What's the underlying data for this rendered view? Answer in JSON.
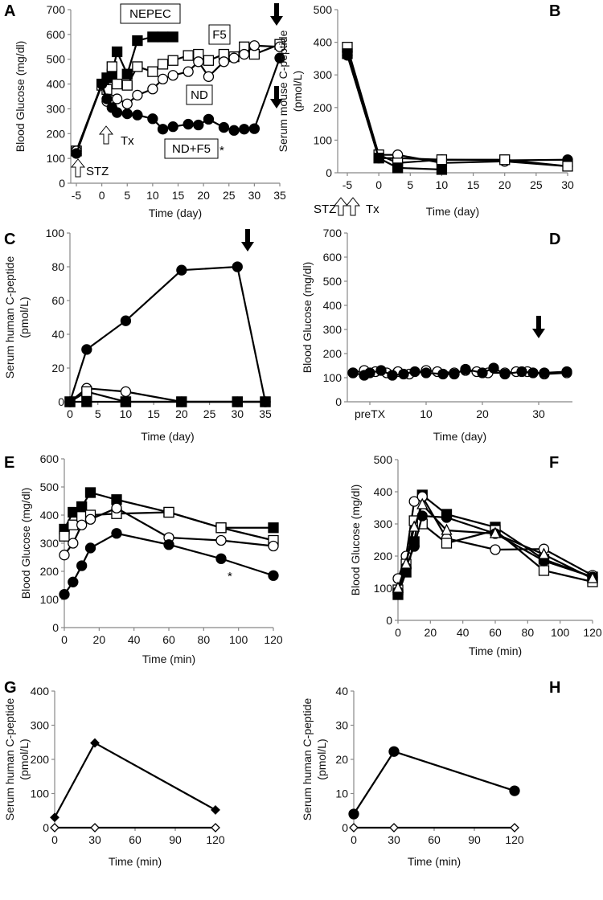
{
  "chart_data": [
    {
      "panel": "A",
      "type": "line",
      "ylabel": "Blood Glucose (mg/dl)",
      "xlabel": "Time (day)",
      "ylim": [
        0,
        700
      ],
      "xlim": [
        -5,
        35
      ],
      "yticks": [
        0,
        100,
        200,
        300,
        400,
        500,
        600,
        700
      ],
      "xticks": [
        -5,
        0,
        5,
        10,
        15,
        20,
        25,
        30,
        35
      ],
      "annotations": [
        "NEPEC",
        "F5",
        "ND",
        "ND+F5",
        "*",
        "Tx",
        "STZ"
      ],
      "series": [
        {
          "name": "NEPEC",
          "marker": "filled-square",
          "x": [
            -5,
            0,
            1,
            2,
            3,
            5,
            7,
            10,
            12,
            14
          ],
          "y": [
            130,
            400,
            425,
            440,
            530,
            440,
            575,
            590,
            590,
            590
          ]
        },
        {
          "name": "F5",
          "marker": "open-square",
          "x": [
            -5,
            0,
            1,
            2,
            3,
            5,
            7,
            10,
            12,
            14,
            17,
            19,
            21,
            24,
            26,
            28,
            30,
            35
          ],
          "y": [
            130,
            395,
            378,
            470,
            400,
            395,
            470,
            450,
            480,
            495,
            515,
            520,
            495,
            520,
            510,
            550,
            520,
            560
          ]
        },
        {
          "name": "ND",
          "marker": "open-circle",
          "x": [
            -5,
            0,
            1,
            2,
            3,
            5,
            7,
            10,
            12,
            14,
            17,
            19,
            21,
            24,
            26,
            28,
            30,
            35
          ],
          "y": [
            130,
            400,
            330,
            335,
            340,
            320,
            355,
            380,
            420,
            435,
            450,
            490,
            430,
            490,
            505,
            520,
            555,
            550
          ]
        },
        {
          "name": "ND+F5",
          "marker": "filled-circle",
          "x": [
            -5,
            0,
            1,
            2,
            3,
            5,
            7,
            10,
            12,
            14,
            17,
            19,
            21,
            24,
            26,
            28,
            30,
            35
          ],
          "y": [
            120,
            400,
            340,
            305,
            285,
            280,
            275,
            260,
            218,
            228,
            238,
            235,
            258,
            225,
            213,
            218,
            220,
            505
          ]
        }
      ]
    },
    {
      "panel": "B",
      "type": "line",
      "ylabel": "Serum mouse C-peptide (pmol/L)",
      "xlabel": "Time (day)",
      "ylim": [
        0,
        500
      ],
      "xlim": [
        -5,
        30
      ],
      "yticks": [
        0,
        100,
        200,
        300,
        400,
        500
      ],
      "xticks": [
        -5,
        0,
        5,
        10,
        15,
        20,
        25,
        30
      ],
      "annotations": [
        "STZ",
        "Tx"
      ],
      "series": [
        {
          "name": "ND+F5",
          "marker": "filled-circle",
          "x": [
            -5,
            0,
            3,
            10,
            20,
            30
          ],
          "y": [
            360,
            45,
            45,
            40,
            38,
            40
          ]
        },
        {
          "name": "ND",
          "marker": "open-circle",
          "x": [
            -5,
            0,
            3,
            10,
            20,
            30
          ],
          "y": [
            370,
            55,
            55,
            30,
            35,
            20
          ]
        },
        {
          "name": "F5",
          "marker": "open-square",
          "x": [
            -5,
            0,
            3,
            10,
            20,
            30
          ],
          "y": [
            385,
            55,
            30,
            40,
            40,
            20
          ]
        },
        {
          "name": "NEPEC",
          "marker": "filled-square",
          "x": [
            -5,
            0,
            3,
            10
          ],
          "y": [
            365,
            45,
            15,
            10
          ]
        }
      ]
    },
    {
      "panel": "C",
      "type": "line",
      "ylabel": "Serum human C-peptide (pmol/L)",
      "xlabel": "Time (day)",
      "ylim": [
        0,
        100
      ],
      "xlim": [
        0,
        35
      ],
      "yticks": [
        0,
        20,
        40,
        60,
        80,
        100
      ],
      "xticks": [
        0,
        5,
        10,
        15,
        20,
        25,
        30,
        35
      ],
      "annotations": [],
      "series": [
        {
          "name": "ND",
          "marker": "open-circle",
          "x": [
            0,
            3,
            10,
            20,
            30,
            35
          ],
          "y": [
            0,
            8,
            6,
            0,
            0,
            0
          ]
        },
        {
          "name": "F5",
          "marker": "open-square",
          "x": [
            0,
            3,
            10,
            20,
            30,
            35
          ],
          "y": [
            0,
            6,
            0,
            0,
            0,
            0
          ]
        },
        {
          "name": "NEPEC",
          "marker": "filled-square",
          "x": [
            0,
            3,
            10,
            20,
            30,
            35
          ],
          "y": [
            0,
            0,
            0,
            0,
            0,
            0
          ]
        },
        {
          "name": "ND+F5",
          "marker": "filled-circle",
          "x": [
            0,
            3,
            10,
            20,
            30,
            35
          ],
          "y": [
            0,
            31,
            48,
            78,
            80,
            0
          ]
        }
      ]
    },
    {
      "panel": "D",
      "type": "line",
      "ylabel": "Blood Glucose (mg/dl)",
      "xlabel": "Time (day)",
      "ylim": [
        0,
        700
      ],
      "xlim": [
        -4,
        36
      ],
      "yticks": [
        0,
        100,
        200,
        300,
        400,
        500,
        600,
        700
      ],
      "xticks": [
        0,
        10,
        20,
        30
      ],
      "xticklabels": [
        "preTX",
        "10",
        "20",
        "30"
      ],
      "annotations": [],
      "series": [
        {
          "name": "open",
          "marker": "open-circle",
          "x": [
            -3,
            -1,
            1,
            3,
            5,
            7,
            10,
            12,
            15,
            17,
            19,
            21,
            24,
            26,
            28,
            31,
            35
          ],
          "y": [
            120,
            130,
            125,
            120,
            125,
            115,
            130,
            125,
            120,
            130,
            125,
            120,
            120,
            125,
            125,
            115,
            120
          ]
        },
        {
          "name": "filled",
          "marker": "filled-circle",
          "x": [
            -3,
            -1,
            0,
            2,
            4,
            6,
            8,
            10,
            13,
            15,
            17,
            20,
            22,
            24,
            27,
            29,
            31,
            35
          ],
          "y": [
            120,
            110,
            120,
            130,
            110,
            115,
            125,
            120,
            115,
            115,
            135,
            120,
            140,
            115,
            125,
            120,
            120,
            125
          ]
        }
      ]
    },
    {
      "panel": "E",
      "type": "line",
      "ylabel": "Blood Glucose (mg/dl)",
      "xlabel": "Time (min)",
      "ylim": [
        0,
        600
      ],
      "xlim": [
        0,
        120
      ],
      "yticks": [
        0,
        100,
        200,
        300,
        400,
        500,
        600
      ],
      "xticks": [
        0,
        20,
        40,
        60,
        80,
        100,
        120
      ],
      "annotations": [
        "*"
      ],
      "series": [
        {
          "name": "NEPEC",
          "marker": "filled-square",
          "x": [
            0,
            5,
            10,
            15,
            30,
            60,
            90,
            120
          ],
          "y": [
            350,
            410,
            430,
            480,
            455,
            410,
            355,
            355
          ]
        },
        {
          "name": "F5",
          "marker": "open-square",
          "x": [
            0,
            5,
            10,
            15,
            30,
            60,
            90,
            120
          ],
          "y": [
            325,
            365,
            395,
            400,
            405,
            410,
            355,
            310
          ]
        },
        {
          "name": "ND",
          "marker": "open-circle",
          "x": [
            0,
            5,
            10,
            15,
            30,
            60,
            90,
            120
          ],
          "y": [
            258,
            300,
            365,
            385,
            425,
            320,
            310,
            290
          ]
        },
        {
          "name": "ND+F5",
          "marker": "filled-circle",
          "x": [
            0,
            5,
            10,
            15,
            30,
            60,
            90,
            120
          ],
          "y": [
            118,
            162,
            220,
            283,
            335,
            295,
            245,
            185
          ]
        }
      ]
    },
    {
      "panel": "F",
      "type": "line",
      "ylabel": "Blood Glucose (mg/dl)",
      "xlabel": "Time (min)",
      "ylim": [
        0,
        500
      ],
      "xlim": [
        0,
        120
      ],
      "yticks": [
        0,
        100,
        200,
        300,
        400,
        500
      ],
      "xticks": [
        0,
        20,
        40,
        60,
        80,
        100,
        120
      ],
      "annotations": [],
      "series": [
        {
          "name": "filled-square",
          "marker": "filled-square",
          "x": [
            0,
            5,
            10,
            15,
            30,
            60,
            90,
            120
          ],
          "y": [
            80,
            150,
            245,
            390,
            330,
            290,
            190,
            135
          ]
        },
        {
          "name": "open-circle",
          "marker": "open-circle",
          "x": [
            0,
            5,
            10,
            15,
            30,
            60,
            90,
            120
          ],
          "y": [
            130,
            200,
            370,
            385,
            255,
            220,
            222,
            140
          ]
        },
        {
          "name": "open-square",
          "marker": "open-square",
          "x": [
            0,
            5,
            10,
            15,
            30,
            60,
            90,
            120
          ],
          "y": [
            95,
            175,
            310,
            300,
            240,
            280,
            155,
            120
          ]
        },
        {
          "name": "filled-circle",
          "marker": "filled-circle",
          "x": [
            0,
            5,
            10,
            15,
            30,
            60,
            90,
            120
          ],
          "y": [
            90,
            165,
            230,
            325,
            320,
            270,
            185,
            135
          ]
        },
        {
          "name": "open-triangle",
          "marker": "open-triangle",
          "x": [
            0,
            5,
            10,
            15,
            30,
            60,
            90,
            120
          ],
          "y": [
            100,
            175,
            290,
            360,
            280,
            270,
            205,
            130
          ]
        }
      ]
    },
    {
      "panel": "G",
      "type": "line",
      "ylabel": "Serum human C-peptide (pmol/L)",
      "xlabel": "Time (min)",
      "ylim": [
        0,
        400
      ],
      "xlim": [
        0,
        120
      ],
      "yticks": [
        0,
        100,
        200,
        300,
        400
      ],
      "xticks": [
        0,
        30,
        60,
        90,
        120
      ],
      "annotations": [],
      "series": [
        {
          "name": "open",
          "marker": "open-diamond",
          "x": [
            0,
            30,
            120
          ],
          "y": [
            0,
            0,
            0
          ]
        },
        {
          "name": "filled",
          "marker": "filled-diamond",
          "x": [
            0,
            30,
            120
          ],
          "y": [
            30,
            248,
            52
          ]
        }
      ]
    },
    {
      "panel": "H",
      "type": "line",
      "ylabel": "Serum human C-peptide (pmol/L)",
      "xlabel": "Time (min)",
      "ylim": [
        0,
        40
      ],
      "xlim": [
        0,
        120
      ],
      "yticks": [
        0,
        10,
        20,
        30,
        40
      ],
      "xticks": [
        0,
        30,
        60,
        90,
        120
      ],
      "annotations": [],
      "series": [
        {
          "name": "open",
          "marker": "open-diamond",
          "x": [
            0,
            30,
            120
          ],
          "y": [
            0,
            0,
            0
          ]
        },
        {
          "name": "filled",
          "marker": "filled-circle",
          "x": [
            0,
            30,
            120
          ],
          "y": [
            4,
            22.3,
            10.8
          ]
        }
      ]
    }
  ]
}
